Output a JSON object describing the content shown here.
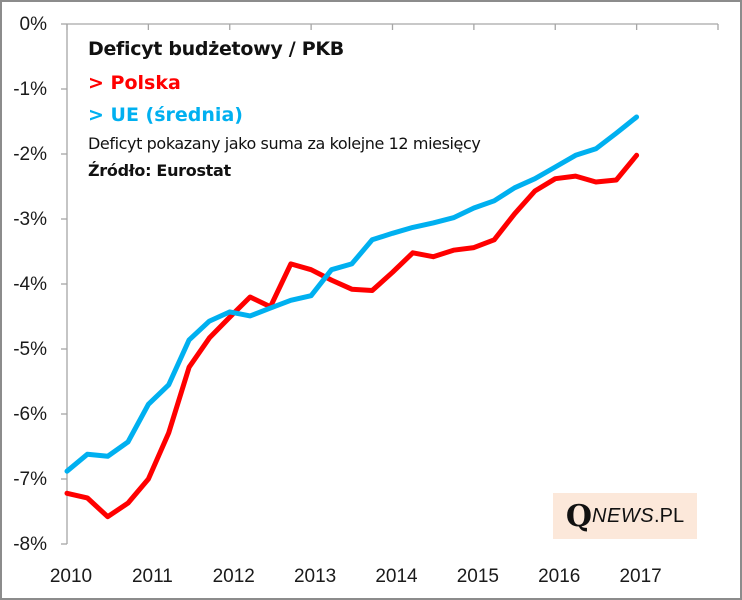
{
  "chart_data": {
    "type": "line",
    "title": "Deficyt budżetowy / PKB",
    "subtitle": "Deficyt pokazany jako suma za kolejne 12 miesięcy",
    "source": "Źródło: Eurostat",
    "xlabel": "",
    "ylabel": "",
    "x_tick_labels": [
      "2010",
      "2011",
      "2012",
      "2013",
      "2014",
      "2015",
      "2016",
      "2017"
    ],
    "x_ticks": [
      2010,
      2011,
      2012,
      2013,
      2014,
      2015,
      2016,
      2017,
      2018
    ],
    "xlim": [
      2010,
      2018
    ],
    "y_tick_labels": [
      "0%",
      "-1%",
      "-2%",
      "-3%",
      "-4%",
      "-5%",
      "-6%",
      "-7%",
      "-8%"
    ],
    "y_ticks": [
      0,
      -1,
      -2,
      -3,
      -4,
      -5,
      -6,
      -7,
      -8
    ],
    "ylim": [
      -8,
      0
    ],
    "y_unit": "%",
    "grid": false,
    "legend_placement": "top-left (in title text)",
    "x": [
      2010.0,
      2010.25,
      2010.5,
      2010.75,
      2011.0,
      2011.25,
      2011.5,
      2011.75,
      2012.0,
      2012.25,
      2012.5,
      2012.75,
      2013.0,
      2013.25,
      2013.5,
      2013.75,
      2014.0,
      2014.25,
      2014.5,
      2014.75,
      2015.0,
      2015.25,
      2015.5,
      2015.75,
      2016.0,
      2016.25,
      2016.5,
      2016.75,
      2017.0
    ],
    "series": [
      {
        "name": "> Polska",
        "color": "#ff0000",
        "values": [
          -7.22,
          -7.29,
          -7.58,
          -7.37,
          -7.0,
          -6.29,
          -5.28,
          -4.83,
          -4.51,
          -4.2,
          -4.35,
          -3.69,
          -3.78,
          -3.94,
          -4.08,
          -4.1,
          -3.82,
          -3.52,
          -3.58,
          -3.48,
          -3.44,
          -3.32,
          -2.92,
          -2.57,
          -2.38,
          -2.34,
          -2.43,
          -2.4,
          -2.02
        ]
      },
      {
        "name": "> UE (średnia)",
        "color": "#00b0f0",
        "values": [
          -6.88,
          -6.62,
          -6.65,
          -6.43,
          -5.85,
          -5.55,
          -4.86,
          -4.57,
          -4.43,
          -4.49,
          -4.37,
          -4.25,
          -4.18,
          -3.78,
          -3.69,
          -3.32,
          -3.22,
          -3.13,
          -3.06,
          -2.98,
          -2.83,
          -2.72,
          -2.52,
          -2.38,
          -2.2,
          -2.02,
          -1.92,
          -1.68,
          -1.43
        ]
      }
    ]
  },
  "watermark": {
    "q": "Q",
    "news": "NEWS",
    "pl": ".PL",
    "background": "#fce8da"
  },
  "colors": {
    "axis": "#a6a6a6",
    "frame": "#8c8c8c"
  }
}
